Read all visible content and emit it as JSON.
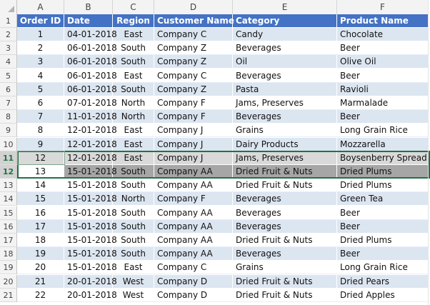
{
  "columns": [
    "A",
    "B",
    "C",
    "D",
    "E",
    "F"
  ],
  "header": {
    "row_number": "1",
    "order_id": "Order ID",
    "date": "Date",
    "region": "Region",
    "customer_name": "Customer Name",
    "category": "Category",
    "product_name": "Product Name"
  },
  "rows": [
    {
      "row": "2",
      "order_id": "1",
      "date": "04-01-2018",
      "region": "East",
      "customer": "Company C",
      "category": "Candy",
      "product": "Chocolate"
    },
    {
      "row": "3",
      "order_id": "2",
      "date": "06-01-2018",
      "region": "South",
      "customer": "Company Z",
      "category": "Beverages",
      "product": "Beer"
    },
    {
      "row": "4",
      "order_id": "3",
      "date": "06-01-2018",
      "region": "South",
      "customer": "Company Z",
      "category": "Oil",
      "product": "Olive Oil"
    },
    {
      "row": "5",
      "order_id": "4",
      "date": "06-01-2018",
      "region": "East",
      "customer": "Company C",
      "category": "Beverages",
      "product": "Beer"
    },
    {
      "row": "6",
      "order_id": "5",
      "date": "06-01-2018",
      "region": "South",
      "customer": "Company Z",
      "category": "Pasta",
      "product": "Ravioli"
    },
    {
      "row": "7",
      "order_id": "6",
      "date": "07-01-2018",
      "region": "North",
      "customer": "Company F",
      "category": "Jams, Preserves",
      "product": "Marmalade"
    },
    {
      "row": "8",
      "order_id": "7",
      "date": "11-01-2018",
      "region": "North",
      "customer": "Company F",
      "category": "Beverages",
      "product": "Beer"
    },
    {
      "row": "9",
      "order_id": "8",
      "date": "12-01-2018",
      "region": "East",
      "customer": "Company J",
      "category": "Grains",
      "product": "Long Grain Rice"
    },
    {
      "row": "10",
      "order_id": "9",
      "date": "12-01-2018",
      "region": "East",
      "customer": "Company J",
      "category": "Dairy Products",
      "product": "Mozzarella"
    },
    {
      "row": "11",
      "order_id": "12",
      "date": "12-01-2018",
      "region": "East",
      "customer": "Company J",
      "category": "Jams, Preserves",
      "product": "Boysenberry Spread"
    },
    {
      "row": "12",
      "order_id": "13",
      "date": "15-01-2018",
      "region": "South",
      "customer": "Company AA",
      "category": "Dried Fruit & Nuts",
      "product": "Dried Plums"
    },
    {
      "row": "13",
      "order_id": "14",
      "date": "15-01-2018",
      "region": "South",
      "customer": "Company AA",
      "category": "Dried Fruit & Nuts",
      "product": "Dried Plums"
    },
    {
      "row": "14",
      "order_id": "15",
      "date": "15-01-2018",
      "region": "North",
      "customer": "Company F",
      "category": "Beverages",
      "product": "Green Tea"
    },
    {
      "row": "15",
      "order_id": "16",
      "date": "15-01-2018",
      "region": "South",
      "customer": "Company AA",
      "category": "Beverages",
      "product": "Beer"
    },
    {
      "row": "16",
      "order_id": "17",
      "date": "15-01-2018",
      "region": "South",
      "customer": "Company AA",
      "category": "Beverages",
      "product": "Beer"
    },
    {
      "row": "17",
      "order_id": "18",
      "date": "15-01-2018",
      "region": "South",
      "customer": "Company AA",
      "category": "Dried Fruit & Nuts",
      "product": "Dried Plums"
    },
    {
      "row": "18",
      "order_id": "19",
      "date": "15-01-2018",
      "region": "South",
      "customer": "Company AA",
      "category": "Beverages",
      "product": "Beer"
    },
    {
      "row": "19",
      "order_id": "20",
      "date": "15-01-2018",
      "region": "East",
      "customer": "Company C",
      "category": "Grains",
      "product": "Long Grain Rice"
    },
    {
      "row": "20",
      "order_id": "21",
      "date": "20-01-2018",
      "region": "West",
      "customer": "Company D",
      "category": "Dried Fruit & Nuts",
      "product": "Dried Pears"
    },
    {
      "row": "21",
      "order_id": "22",
      "date": "20-01-2018",
      "region": "West",
      "customer": "Company D",
      "category": "Dried Fruit & Nuts",
      "product": "Dried Apples"
    }
  ],
  "colors": {
    "header_fill": "#4472c4",
    "band_fill": "#dce6f1",
    "selection_fill": "#a6a6a6",
    "selection_border": "#217346"
  }
}
